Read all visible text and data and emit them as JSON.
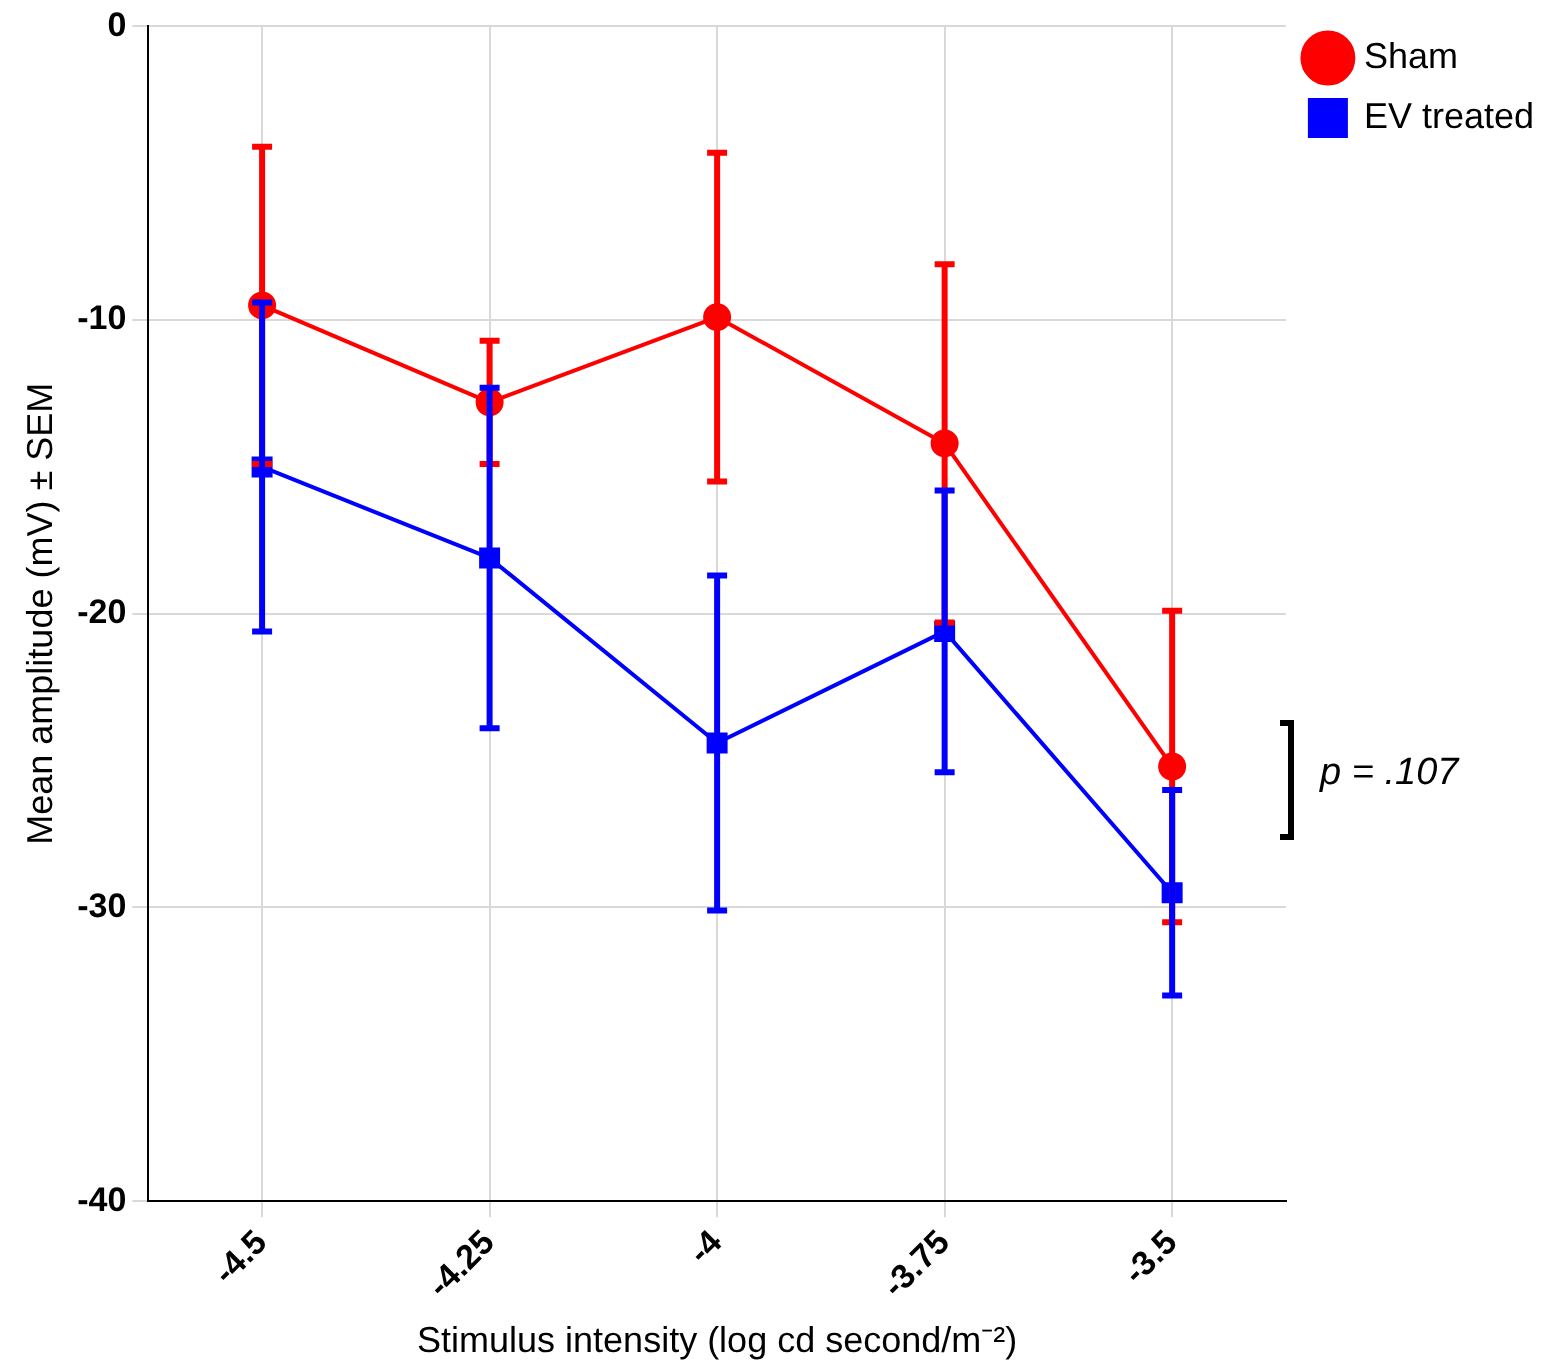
{
  "chart_data": {
    "type": "line",
    "xlabel": "Stimulus intensity (log cd second/m⁻²)",
    "ylabel": "Mean amplitude (mV) ± SEM",
    "categories": [
      "-4.5",
      "-4.25",
      "-4",
      "-3.75",
      "-3.5"
    ],
    "series": [
      {
        "name": "Sham",
        "color": "#ff0000",
        "marker": "circle",
        "values": [
          -9.5,
          -12.8,
          -9.9,
          -14.2,
          -25.2
        ],
        "errors": [
          5.4,
          2.1,
          5.6,
          6.1,
          5.3
        ]
      },
      {
        "name": "EV treated",
        "color": "#0000ff",
        "marker": "square",
        "values": [
          -15.0,
          -18.1,
          -24.4,
          -20.6,
          -29.5
        ],
        "errors": [
          5.6,
          5.8,
          5.7,
          4.8,
          3.5
        ]
      }
    ],
    "ylim": [
      -40,
      0
    ],
    "yticks": [
      -40,
      -30,
      -20,
      -10,
      0
    ],
    "grid": true,
    "legend": "top right",
    "line_style": "solid",
    "annotations": [
      "p = .107"
    ]
  }
}
